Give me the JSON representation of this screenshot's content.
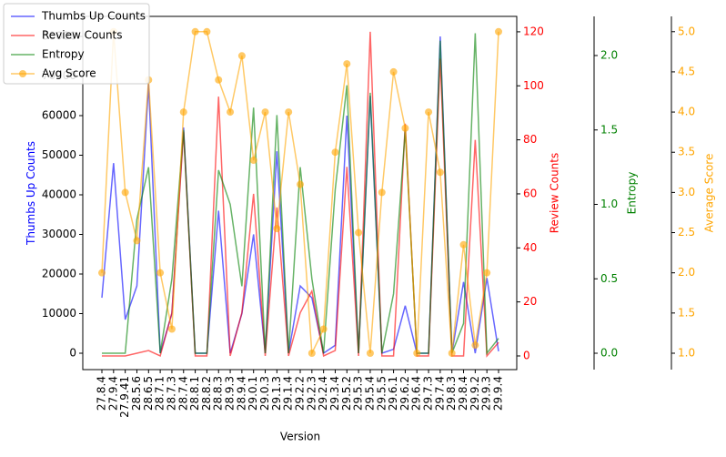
{
  "chart_data": {
    "type": "line",
    "xlabel": "Version",
    "categories": [
      "27.8.4",
      "27.9.4",
      "27.9.41",
      "28.5.6",
      "28.6.5",
      "28.7.1",
      "28.7.3",
      "28.7.4",
      "28.8.1",
      "28.8.2",
      "28.8.3",
      "28.9.3",
      "28.9.4",
      "29.0.1",
      "29.0.3",
      "29.1.3",
      "29.1.4",
      "29.2.2",
      "29.2.3",
      "29.2.4",
      "29.3.4",
      "29.5.2",
      "29.5.3",
      "29.5.4",
      "29.5.5",
      "29.6.1",
      "29.6.2",
      "29.6.4",
      "29.7.3",
      "29.7.4",
      "29.8.3",
      "29.8.4",
      "29.9.2",
      "29.9.3",
      "29.9.4"
    ],
    "series": [
      {
        "name": "Thumbs Up Counts",
        "color": "blue",
        "axis": "y",
        "values": [
          14000,
          48000,
          8500,
          17000,
          68000,
          0,
          10000,
          57000,
          0,
          0,
          36000,
          0,
          10000,
          30000,
          0,
          51000,
          0,
          17000,
          14000,
          0,
          2000,
          60000,
          0,
          65000,
          0,
          1000,
          12000,
          0,
          0,
          80000,
          0,
          18000,
          0,
          19000,
          500
        ]
      },
      {
        "name": "Review Counts",
        "color": "red",
        "axis": "y2",
        "values": [
          0,
          0,
          0,
          1,
          2,
          0,
          16,
          83,
          0,
          0,
          96,
          0,
          16,
          60,
          0,
          55,
          0,
          16,
          24,
          0,
          2,
          70,
          0,
          120,
          0,
          0,
          86,
          0,
          0,
          110,
          0,
          0,
          80,
          0,
          5
        ]
      },
      {
        "name": "Entropy",
        "color": "green",
        "axis": "y3",
        "values": [
          0,
          0,
          0,
          0.9,
          1.25,
          0,
          0.5,
          1.5,
          0,
          0,
          1.23,
          1.0,
          0.45,
          1.65,
          0,
          1.6,
          0,
          1.25,
          0.5,
          0,
          1.1,
          1.8,
          0,
          1.75,
          0,
          0.4,
          1.5,
          0,
          0,
          2.1,
          0,
          0.2,
          2.15,
          0,
          0.1
        ]
      },
      {
        "name": "Avg Score",
        "color": "orange",
        "axis": "y4",
        "marker": "o",
        "values": [
          2.0,
          5.0,
          3.0,
          2.4,
          4.4,
          2.0,
          1.3,
          4.0,
          5.0,
          5.0,
          4.4,
          4.0,
          4.7,
          3.4,
          4.0,
          2.55,
          4.0,
          3.1,
          1.0,
          1.3,
          3.5,
          4.6,
          2.5,
          1.0,
          3.0,
          4.5,
          3.8,
          1.0,
          4.0,
          3.25,
          1.0,
          2.35,
          1.1,
          2.0,
          5.0
        ]
      }
    ],
    "ylabel": "Thumbs Up Counts",
    "ylim": [
      -4138,
      85057
    ],
    "yticks": [
      0,
      10000,
      20000,
      30000,
      40000,
      50000,
      60000,
      70000,
      80000
    ],
    "y2label": "Review Counts",
    "y2lim": [
      -5.06,
      125.7
    ],
    "y2ticks": [
      0,
      20,
      40,
      60,
      80,
      100,
      120
    ],
    "y3label": "Entropy",
    "y3lim": [
      -0.11,
      2.263
    ],
    "y3ticks": [
      {
        "value": 0,
        "label": "0.0"
      },
      {
        "value": 0.5,
        "label": "0.5"
      },
      {
        "value": 1,
        "label": "1.0"
      },
      {
        "value": 1.5,
        "label": "1.5"
      },
      {
        "value": 2,
        "label": "2.0"
      }
    ],
    "y4label": "Average Score",
    "y4lim": [
      0.796,
      5.19
    ],
    "y4ticks": [
      {
        "value": 1,
        "label": "1.0"
      },
      {
        "value": 1.5,
        "label": "1.5"
      },
      {
        "value": 2,
        "label": "2.0"
      },
      {
        "value": 2.5,
        "label": "2.5"
      },
      {
        "value": 3,
        "label": "3.0"
      },
      {
        "value": 3.5,
        "label": "3.5"
      },
      {
        "value": 4,
        "label": "4.0"
      },
      {
        "value": 4.5,
        "label": "4.5"
      },
      {
        "value": 5,
        "label": "5.0"
      }
    ],
    "legend": "upper left"
  }
}
